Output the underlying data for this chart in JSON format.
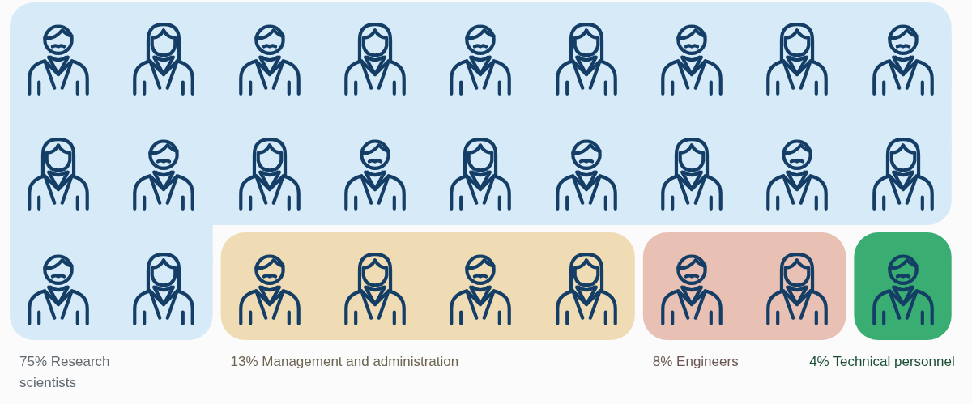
{
  "chart_data": {
    "type": "other",
    "categories": [
      "Research scientists",
      "Management and administration",
      "Engineers",
      "Technical personnel"
    ],
    "values": [
      75,
      13,
      8,
      4
    ],
    "value_labels": [
      "75%",
      "13%",
      "8%",
      "4%"
    ],
    "colors": [
      "#d6eaf8",
      "#efdcb4",
      "#e9c0b4",
      "#3aae72"
    ]
  }
}
